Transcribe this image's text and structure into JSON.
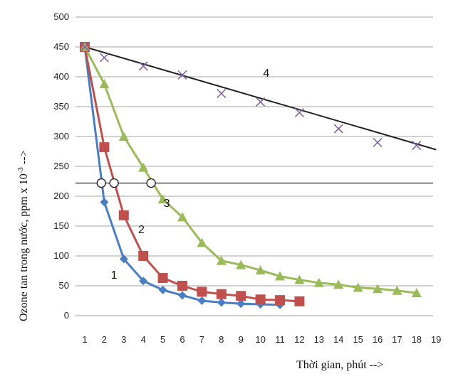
{
  "chart_data": {
    "type": "line",
    "xlabel": "Thời gian, phút -->",
    "ylabel_main": "Ozone tan trong nước, ppm x 10",
    "ylabel_exp": "-3",
    "ylabel_tail": " -->",
    "x_ticks": [
      1,
      2,
      3,
      4,
      5,
      6,
      7,
      8,
      9,
      10,
      11,
      12,
      13,
      14,
      15,
      16,
      17,
      18,
      19
    ],
    "y_ticks": [
      0,
      50,
      100,
      150,
      200,
      250,
      300,
      350,
      400,
      450,
      500
    ],
    "ylim": [
      0,
      500
    ],
    "xlim": [
      1,
      19
    ],
    "grid": "horizontal",
    "threshold": 222,
    "series": [
      {
        "name": "1",
        "color": "#4a7ec4",
        "marker": "diamond",
        "x": [
          1,
          2,
          3,
          4,
          5,
          6,
          7,
          8,
          9,
          10,
          11
        ],
        "y": [
          450,
          190,
          95,
          58,
          43,
          34,
          25,
          22,
          20,
          19,
          18
        ]
      },
      {
        "name": "2",
        "color": "#c0504d",
        "marker": "square",
        "x": [
          1,
          2,
          3,
          4,
          5,
          6,
          7,
          8,
          9,
          10,
          11,
          12
        ],
        "y": [
          450,
          282,
          168,
          100,
          63,
          50,
          40,
          36,
          33,
          27,
          26,
          24
        ]
      },
      {
        "name": "3",
        "color": "#9bbb59",
        "marker": "triangle",
        "x": [
          1,
          2,
          3,
          4,
          5,
          6,
          7,
          8,
          9,
          10,
          11,
          12,
          13,
          14,
          15,
          16,
          17,
          18
        ],
        "y": [
          450,
          388,
          300,
          248,
          195,
          165,
          122,
          92,
          85,
          76,
          66,
          60,
          55,
          52,
          47,
          45,
          42,
          38
        ]
      },
      {
        "name": "4",
        "color": "#8064a2",
        "marker": "x",
        "x": [
          1,
          2,
          4,
          6,
          8,
          10,
          12,
          14,
          16,
          18
        ],
        "y": [
          450,
          432,
          418,
          403,
          372,
          358,
          340,
          313,
          290,
          285
        ],
        "trend": {
          "x": [
            1,
            19
          ],
          "y": [
            450,
            278
          ]
        }
      }
    ],
    "intersections": [
      {
        "x": 1.85,
        "y": 222
      },
      {
        "x": 2.5,
        "y": 222
      },
      {
        "x": 4.4,
        "y": 222
      }
    ],
    "curve_labels": [
      {
        "text": "1",
        "x": 2.5,
        "y": 62
      },
      {
        "text": "2",
        "x": 3.9,
        "y": 138
      },
      {
        "text": "3",
        "x": 5.2,
        "y": 182
      },
      {
        "text": "4",
        "x": 10.3,
        "y": 400
      }
    ]
  }
}
